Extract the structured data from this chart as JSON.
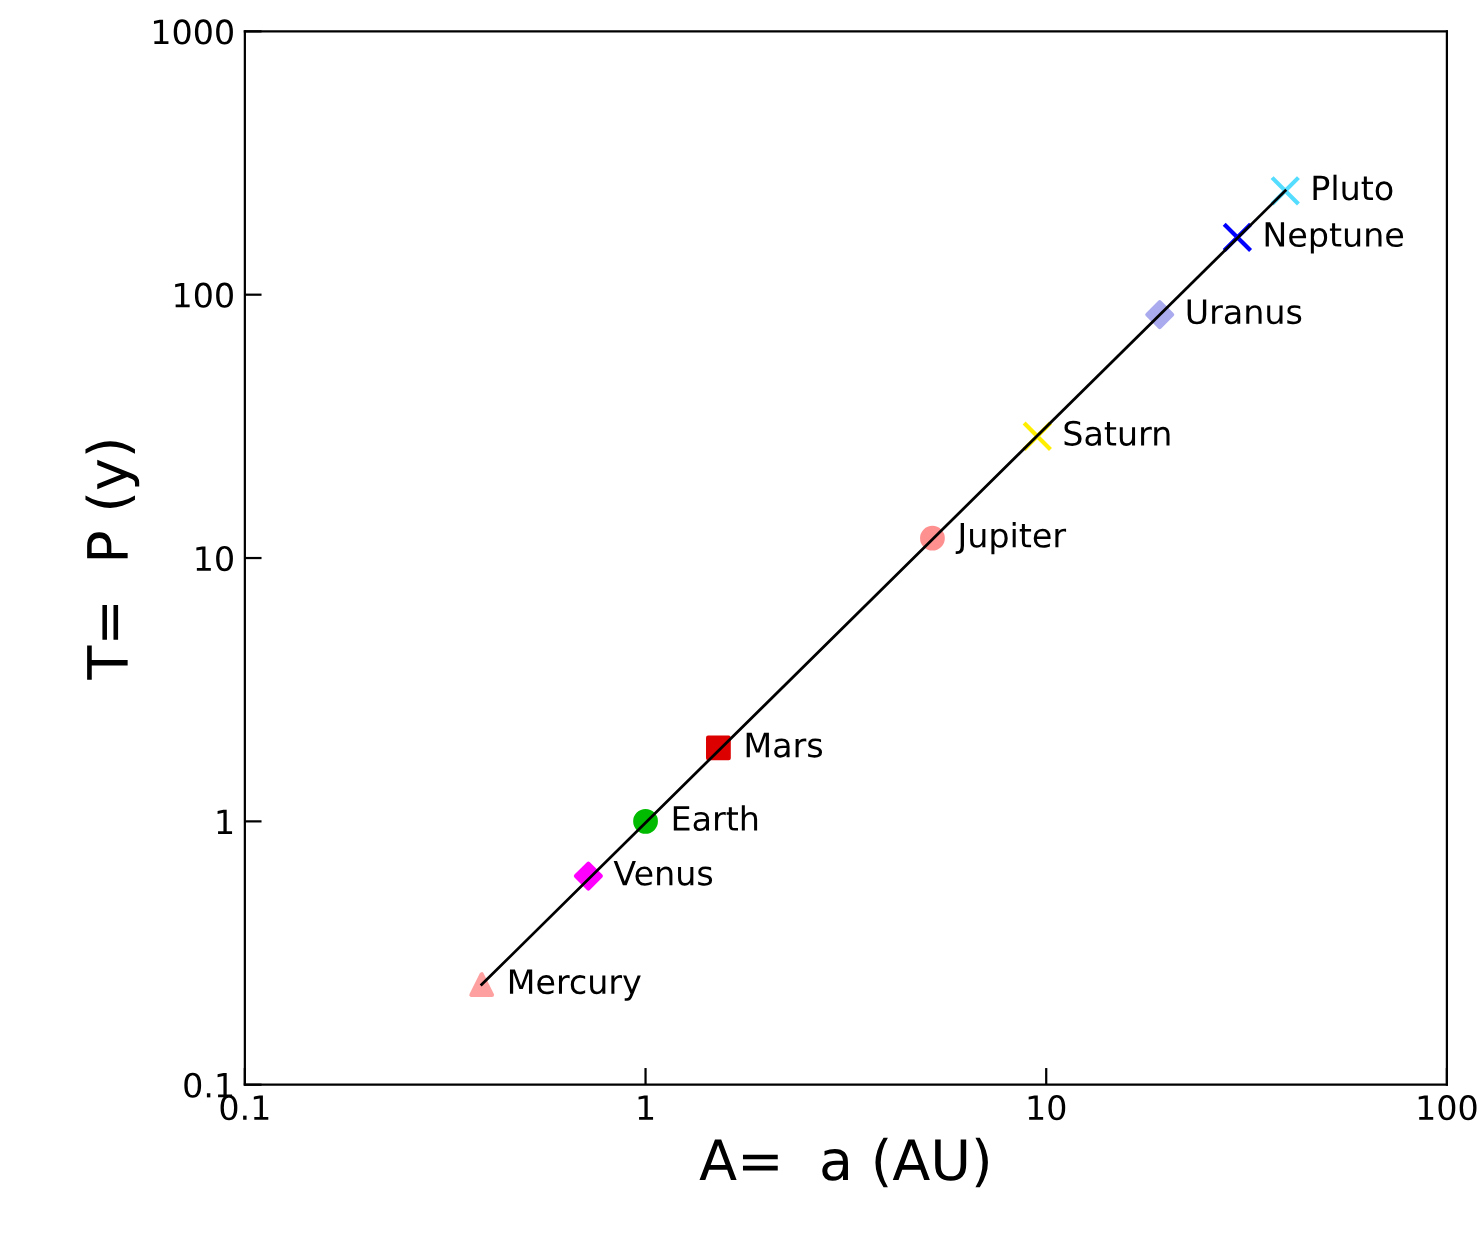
{
  "chart_data": {
    "type": "scatter",
    "xlabel": "A=  a (AU)",
    "ylabel": "T=  P (y)",
    "log": "xy",
    "grid": false,
    "xlim": [
      0.1,
      100
    ],
    "ylim": [
      0.1,
      1000
    ],
    "xticks": [
      0.1,
      1,
      10,
      100
    ],
    "yticks": [
      0.1,
      1,
      10,
      100,
      1000
    ],
    "series": [
      {
        "name": "Mercury",
        "color": "#ffa0a0",
        "marker": "triangle",
        "x": [
          0.39
        ],
        "values": [
          0.24
        ]
      },
      {
        "name": "Venus",
        "color": "#ff00ff",
        "marker": "diamond",
        "x": [
          0.72
        ],
        "values": [
          0.62
        ]
      },
      {
        "name": "Earth",
        "color": "#00bb00",
        "marker": "circle",
        "x": [
          1.0
        ],
        "values": [
          1.0
        ]
      },
      {
        "name": "Mars",
        "color": "#dd0000",
        "marker": "square",
        "x": [
          1.52
        ],
        "values": [
          1.9
        ]
      },
      {
        "name": "Jupiter",
        "color": "#ff9090",
        "marker": "circle",
        "x": [
          5.2
        ],
        "values": [
          11.9
        ]
      },
      {
        "name": "Saturn",
        "color": "#ffee00",
        "marker": "cross",
        "x": [
          9.5
        ],
        "values": [
          29
        ]
      },
      {
        "name": "Uranus",
        "color": "#aaaaee",
        "marker": "diamond",
        "x": [
          19.2
        ],
        "values": [
          84
        ]
      },
      {
        "name": "Neptune",
        "color": "#0000ff",
        "marker": "cross",
        "x": [
          30
        ],
        "values": [
          165
        ]
      },
      {
        "name": "Pluto",
        "color": "#55ddff",
        "marker": "cross",
        "x": [
          39.5
        ],
        "values": [
          248
        ]
      },
      {
        "type": "line",
        "color": "#000000",
        "marker": "none",
        "x": [
          0.39,
          39.5
        ],
        "values": [
          0.24,
          248
        ]
      }
    ]
  }
}
